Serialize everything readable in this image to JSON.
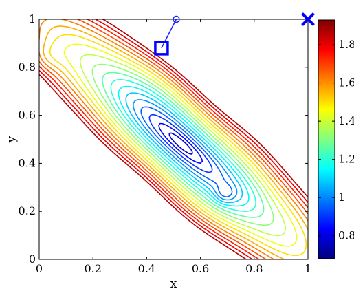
{
  "chart_data": {
    "type": "contour",
    "xlabel": "x",
    "ylabel": "y",
    "xlim": [
      0,
      1
    ],
    "ylim": [
      0,
      1
    ],
    "x_ticks": [
      "0",
      "0.2",
      "0.4",
      "0.6",
      "0.8",
      "1"
    ],
    "y_ticks": [
      "0",
      "0.2",
      "0.4",
      "0.6",
      "0.8",
      "1"
    ],
    "colorbar": {
      "range": [
        0.68,
        1.93
      ],
      "ticks": [
        "0.8",
        "1",
        "1.2",
        "1.4",
        "1.6",
        "1.8"
      ],
      "colormap": "jet"
    },
    "contour_levels": [
      0.72,
      0.78,
      0.84,
      0.9,
      0.96,
      1.02,
      1.08,
      1.14,
      1.2,
      1.26,
      1.32,
      1.38,
      1.44,
      1.5,
      1.56,
      1.62,
      1.68,
      1.74,
      1.8,
      1.86
    ],
    "minimum": {
      "x": 0.53,
      "y": 0.48,
      "value": 0.72
    },
    "markers": [
      {
        "type": "circle",
        "x": 0.51,
        "y": 1.0,
        "color": "#1a1aff"
      },
      {
        "type": "square",
        "x": 0.455,
        "y": 0.88,
        "color": "#0000ff"
      },
      {
        "type": "cross",
        "x": 1.0,
        "y": 1.0,
        "color": "#0000ff"
      }
    ],
    "path": [
      [
        0.51,
        1.0
      ],
      [
        0.455,
        0.88
      ]
    ],
    "grid": false
  }
}
